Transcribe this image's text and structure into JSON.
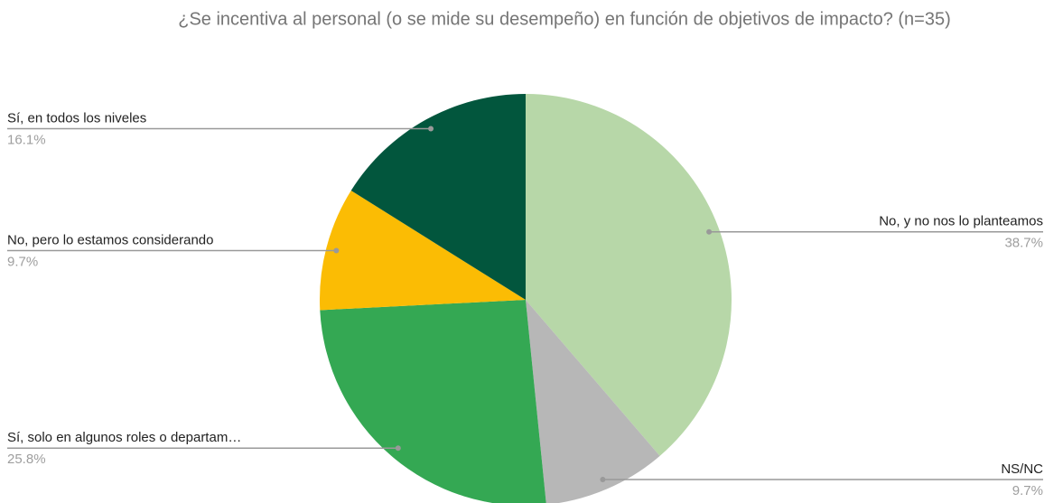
{
  "chart_data": {
    "type": "pie",
    "title": "¿Se incentiva al personal (o se mide su desempeño) en función de objetivos de impacto? (n=35)",
    "categories": [
      "No, y no nos lo planteamos",
      "NS/NC",
      "Sí, solo en algunos roles o departam…",
      "No, pero lo estamos considerando",
      "Sí, en todos los niveles"
    ],
    "values": [
      38.7,
      9.7,
      25.8,
      9.7,
      16.1
    ],
    "value_labels": [
      "38.7%",
      "9.7%",
      "25.8%",
      "9.7%",
      "16.1%"
    ],
    "colors": [
      "#b7d7a8",
      "#b7b7b7",
      "#34a853",
      "#fbbc04",
      "#02563d"
    ]
  }
}
